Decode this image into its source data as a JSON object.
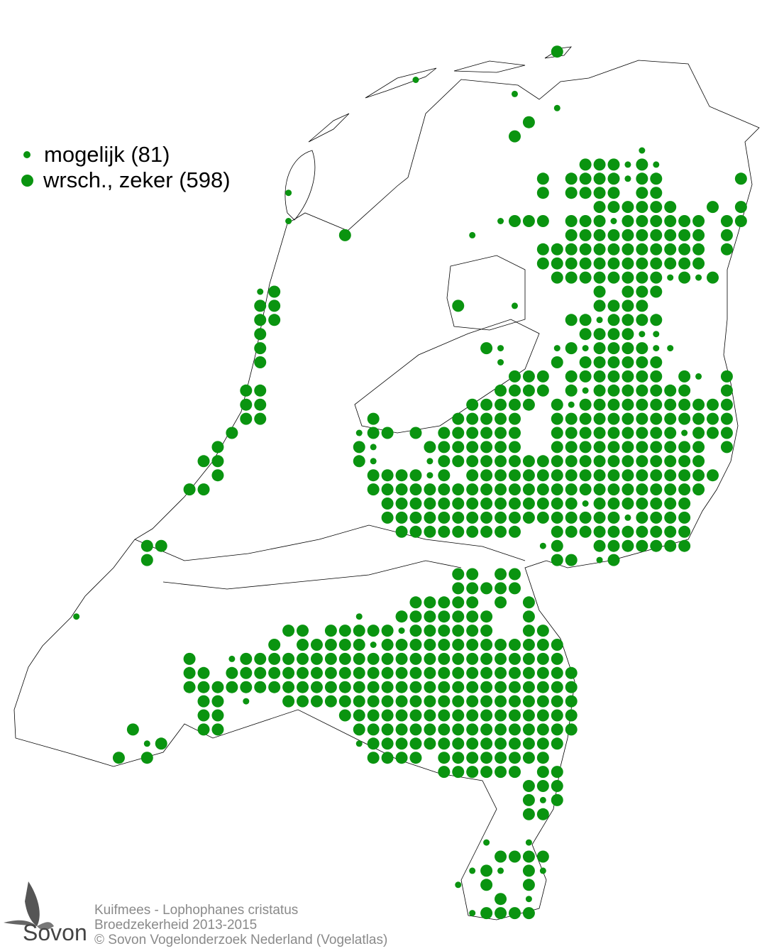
{
  "legend": {
    "items": [
      {
        "label": "mogelijk (81)",
        "symbol": "small-dot"
      },
      {
        "label": "wrsch., zeker (598)",
        "symbol": "large-dot"
      }
    ]
  },
  "footer": {
    "species": "Kuifmees - Lophophanes cristatus",
    "subtitle": "Broedzekerheid 2013-2015",
    "copyright": "© Sovon Vogelonderzoek Nederland (Vogelatlas)"
  },
  "logo": {
    "text": "Sovon"
  },
  "colors": {
    "dot": "#0a9410",
    "outline": "#000000",
    "footer_text": "#8a8a8a"
  }
}
